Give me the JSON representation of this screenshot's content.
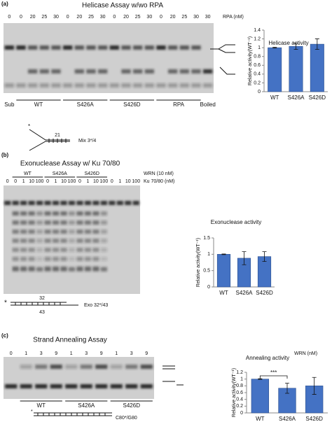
{
  "chart_data": [
    {
      "type": "bar",
      "title": "Helicase activity",
      "y_label": "Relative activity(WT⁻¹)",
      "categories": [
        "WT",
        "S426A",
        "S426D"
      ],
      "values": [
        1,
        1.03,
        1.08
      ],
      "errors": [
        0.01,
        0.07,
        0.12
      ],
      "color": "#4472c4",
      "ylim": [
        0,
        1.4
      ],
      "yticks": [
        0,
        0.2,
        0.4,
        0.6,
        0.8,
        1,
        1.2,
        1.4
      ]
    },
    {
      "type": "bar",
      "title": "Exonuclease activity",
      "y_label": "Relative activity(WT⁻¹)",
      "categories": [
        "WT",
        "S426A",
        "S426D"
      ],
      "values": [
        1,
        0.88,
        0.93
      ],
      "errors": [
        0.01,
        0.2,
        0.15
      ],
      "color": "#4472c4",
      "ylim": [
        0,
        1.5
      ],
      "yticks": [
        0,
        0.5,
        1,
        1.5
      ]
    },
    {
      "type": "bar",
      "title": "Annealing activity",
      "y_label": "Relative activity(WT⁻¹)",
      "categories": [
        "WT",
        "S426A",
        "S426D"
      ],
      "values": [
        1,
        0.73,
        0.8
      ],
      "errors": [
        0.01,
        0.15,
        0.25
      ],
      "color": "#4472c4",
      "ylim": [
        0,
        1.2
      ],
      "yticks": [
        0,
        0.2,
        0.4,
        0.6,
        0.8,
        1,
        1.2
      ],
      "annotation": "***"
    }
  ],
  "panels": [
    {
      "label": "(a)",
      "title": "Helicase Assay w/wo RPA",
      "lanes": [
        "0",
        "0",
        "20",
        "25",
        "30",
        "0",
        "20",
        "25",
        "30",
        "0",
        "20",
        "25",
        "30",
        "0",
        "20",
        "25",
        "30",
        "30"
      ],
      "lane_unit": "RPA (nM)",
      "groups": [
        "Sub",
        "WT",
        "S426A",
        "S426D",
        "RPA",
        "Boiled"
      ],
      "marker": "*",
      "substrate_label": "21",
      "substrate_name": "Mix 3*/4"
    },
    {
      "label": "(b)",
      "title": "Exonuclease Assay w/ Ku 70/80",
      "groups": [
        "WT",
        "S426A",
        "S426D"
      ],
      "group_unit": "WRN (10 nM)",
      "lanes": [
        "0",
        "0",
        "1",
        "10",
        "100",
        "0",
        "1",
        "10",
        "100",
        "0",
        "1",
        "10",
        "100",
        "0",
        "1",
        "10",
        "100"
      ],
      "lane_unit": "Ku 70/80 (nM)",
      "marker": "*",
      "substrate_top": "32",
      "substrate_bottom": "43",
      "substrate_name": "Exo 32*/43"
    },
    {
      "label": "(c)",
      "title": "Strand Annealing Assay",
      "lanes": [
        "0",
        "1",
        "3",
        "9",
        "1",
        "3",
        "9",
        "1",
        "3",
        "9"
      ],
      "lane_unit": "WRN (nM)",
      "groups": [
        "WT",
        "S426A",
        "S426D"
      ],
      "marker": "*",
      "substrate_name": "C80*/G80"
    }
  ]
}
